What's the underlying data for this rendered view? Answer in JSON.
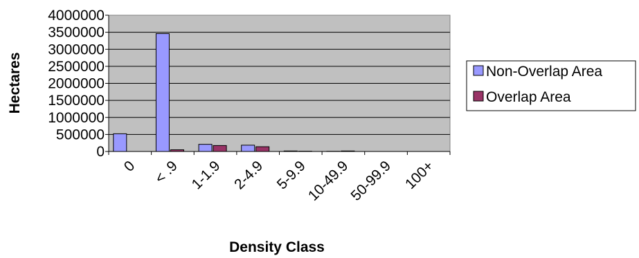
{
  "chart_data": {
    "type": "bar",
    "title": "",
    "xlabel": "Density Class",
    "ylabel": "Hectares",
    "categories": [
      "0",
      "< .9",
      "1-1.9",
      "2-4.9",
      "5-9.9",
      "10-49.9",
      "50-99.9",
      "100+"
    ],
    "series": [
      {
        "name": "Non-Overlap Area",
        "color": "#9999FF",
        "values": [
          520000,
          3460000,
          210000,
          185000,
          15000,
          5000,
          0,
          0
        ]
      },
      {
        "name": "Overlap Area",
        "color": "#993366",
        "values": [
          0,
          50000,
          175000,
          140000,
          8000,
          15000,
          0,
          0
        ]
      }
    ],
    "ylim": [
      0,
      4000000
    ],
    "yticks": [
      "0",
      "500000",
      "1000000",
      "1500000",
      "2000000",
      "2500000",
      "3000000",
      "3500000",
      "4000000"
    ],
    "plot_background": "#C0C0C0",
    "grid": true,
    "legend_position": "right"
  }
}
